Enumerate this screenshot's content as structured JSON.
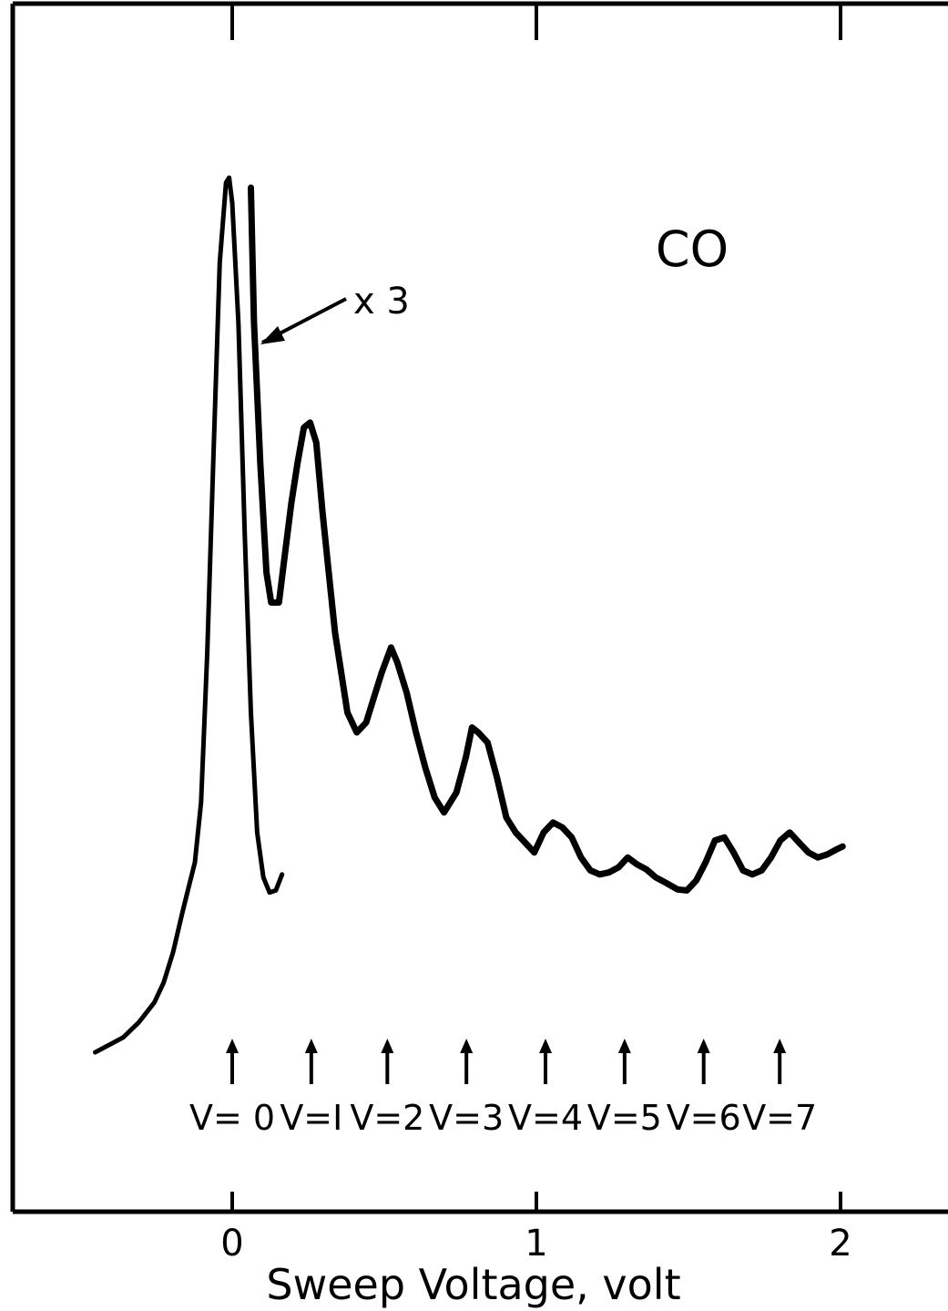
{
  "chart_data": {
    "type": "line",
    "title": "",
    "xlabel": "Sweep Voltage, volt",
    "ylabel": "",
    "xlim": [
      -0.7,
      2.3
    ],
    "ylim": [
      0,
      1
    ],
    "x_ticks": [
      0,
      1,
      2
    ],
    "x_tick_labels": [
      "0",
      "1",
      "2"
    ],
    "grid": false,
    "species_label": "CO",
    "series": [
      {
        "points": [
          [
            -0.44,
            0.05
          ],
          [
            -0.35,
            0.065
          ],
          [
            -0.3,
            0.08
          ],
          [
            -0.25,
            0.1
          ],
          [
            -0.22,
            0.12
          ],
          [
            -0.19,
            0.15
          ],
          [
            -0.16,
            0.19
          ],
          [
            -0.14,
            0.215
          ],
          [
            -0.12,
            0.24
          ],
          [
            -0.1,
            0.3
          ],
          [
            -0.08,
            0.45
          ],
          [
            -0.06,
            0.65
          ],
          [
            -0.04,
            0.84
          ],
          [
            -0.02,
            0.92
          ],
          [
            -0.01,
            0.925
          ],
          [
            0.0,
            0.9
          ],
          [
            0.02,
            0.78
          ],
          [
            0.04,
            0.57
          ],
          [
            0.06,
            0.39
          ],
          [
            0.08,
            0.27
          ],
          [
            0.1,
            0.225
          ],
          [
            0.12,
            0.21
          ],
          [
            0.14,
            0.212
          ],
          [
            0.16,
            0.228
          ]
        ]
      },
      {
        "points": [
          [
            0.06,
            0.915
          ],
          [
            0.07,
            0.78
          ],
          [
            0.09,
            0.64
          ],
          [
            0.11,
            0.53
          ],
          [
            0.125,
            0.5
          ],
          [
            0.15,
            0.5
          ],
          [
            0.17,
            0.55
          ],
          [
            0.19,
            0.6
          ],
          [
            0.21,
            0.64
          ],
          [
            0.23,
            0.675
          ],
          [
            0.25,
            0.68
          ],
          [
            0.27,
            0.66
          ],
          [
            0.29,
            0.59
          ],
          [
            0.31,
            0.53
          ],
          [
            0.33,
            0.47
          ],
          [
            0.35,
            0.43
          ],
          [
            0.37,
            0.39
          ],
          [
            0.4,
            0.37
          ],
          [
            0.43,
            0.38
          ],
          [
            0.46,
            0.41
          ],
          [
            0.48,
            0.43
          ],
          [
            0.51,
            0.455
          ],
          [
            0.53,
            0.44
          ],
          [
            0.56,
            0.41
          ],
          [
            0.59,
            0.37
          ],
          [
            0.62,
            0.335
          ],
          [
            0.65,
            0.305
          ],
          [
            0.68,
            0.29
          ],
          [
            0.72,
            0.31
          ],
          [
            0.75,
            0.345
          ],
          [
            0.77,
            0.375
          ],
          [
            0.79,
            0.37
          ],
          [
            0.82,
            0.36
          ],
          [
            0.85,
            0.325
          ],
          [
            0.88,
            0.285
          ],
          [
            0.91,
            0.27
          ],
          [
            0.94,
            0.26
          ],
          [
            0.97,
            0.25
          ],
          [
            1.0,
            0.27
          ],
          [
            1.03,
            0.28
          ],
          [
            1.06,
            0.275
          ],
          [
            1.09,
            0.265
          ],
          [
            1.12,
            0.245
          ],
          [
            1.15,
            0.232
          ],
          [
            1.18,
            0.228
          ],
          [
            1.21,
            0.23
          ],
          [
            1.24,
            0.235
          ],
          [
            1.27,
            0.245
          ],
          [
            1.3,
            0.238
          ],
          [
            1.33,
            0.233
          ],
          [
            1.36,
            0.225
          ],
          [
            1.39,
            0.22
          ],
          [
            1.43,
            0.213
          ],
          [
            1.46,
            0.212
          ],
          [
            1.49,
            0.222
          ],
          [
            1.52,
            0.24
          ],
          [
            1.55,
            0.262
          ],
          [
            1.58,
            0.265
          ],
          [
            1.61,
            0.25
          ],
          [
            1.64,
            0.232
          ],
          [
            1.67,
            0.228
          ],
          [
            1.7,
            0.232
          ],
          [
            1.73,
            0.245
          ],
          [
            1.76,
            0.262
          ],
          [
            1.79,
            0.27
          ],
          [
            1.82,
            0.26
          ],
          [
            1.85,
            0.25
          ],
          [
            1.88,
            0.245
          ],
          [
            1.91,
            0.248
          ],
          [
            1.94,
            0.253
          ],
          [
            1.96,
            0.256
          ]
        ]
      }
    ],
    "annotations": [
      {
        "text": "x 3",
        "target_x": 0.085,
        "target_y": 0.79
      },
      {
        "text": "V= 0",
        "x": 0.0
      },
      {
        "text": "V=I",
        "x": 0.26
      },
      {
        "text": "V=2",
        "x": 0.51
      },
      {
        "text": "V=3",
        "x": 0.77
      },
      {
        "text": "V=4",
        "x": 1.03
      },
      {
        "text": "V=5",
        "x": 1.29
      },
      {
        "text": "V=6",
        "x": 1.55
      },
      {
        "text": "V=7",
        "x": 1.8
      }
    ]
  }
}
